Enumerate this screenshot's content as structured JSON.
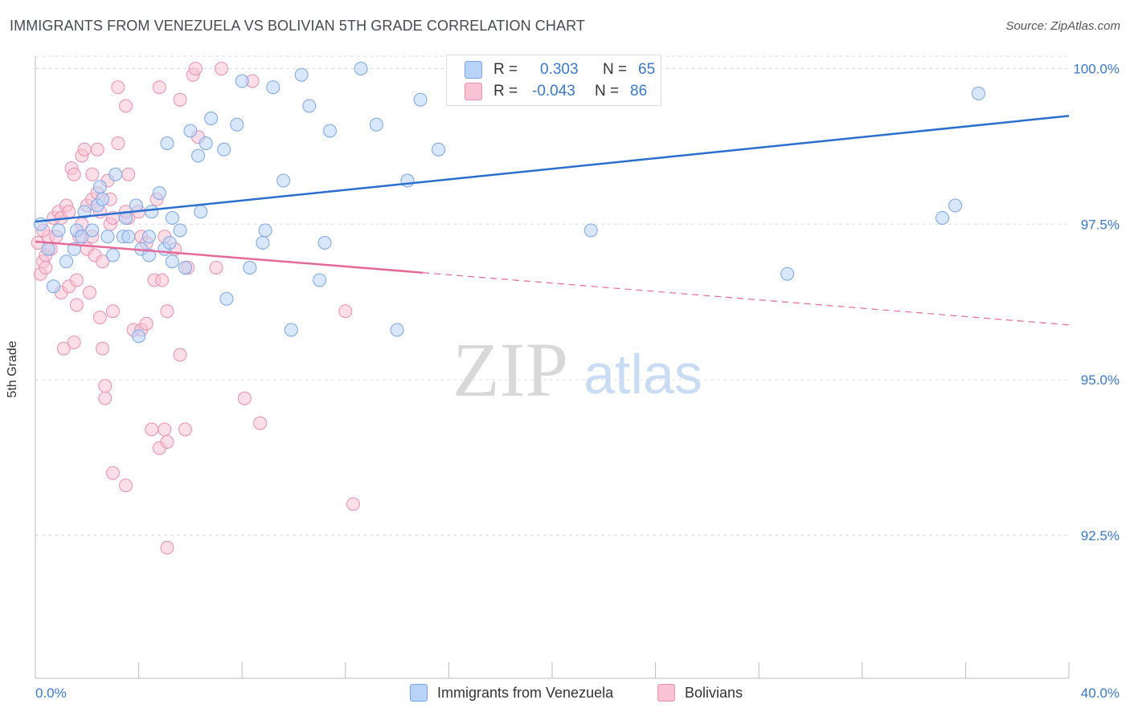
{
  "header": {
    "title": "IMMIGRANTS FROM VENEZUELA VS BOLIVIAN 5TH GRADE CORRELATION CHART",
    "source": "Source: ZipAtlas.com"
  },
  "watermark": {
    "zip": "ZIP",
    "atlas": "atlas"
  },
  "legend": {
    "rows": [
      {
        "r_label": "R =",
        "r_value": "0.303",
        "n_label": "N =",
        "n_value": "65",
        "color": "#b8d3f7"
      },
      {
        "r_label": "R =",
        "r_value": "-0.043",
        "n_label": "N =",
        "n_value": "86",
        "color": "#f9c3d4"
      }
    ]
  },
  "colors": {
    "blue_fill": "#b8d3f7",
    "blue_stroke": "#7aa6e6",
    "blue_line": "#2b6fce",
    "pink_fill": "#f9c3d4",
    "pink_stroke": "#eb8fb0",
    "pink_line": "#e56a99",
    "tick_label": "#3a78c9",
    "grid": "#dddddd"
  },
  "chart_data": {
    "type": "scatter",
    "title": "IMMIGRANTS FROM VENEZUELA VS BOLIVIAN 5TH GRADE CORRELATION CHART",
    "xlabel": "",
    "ylabel": "5th Grade",
    "xlim": [
      0,
      40
    ],
    "ylim": [
      90.2,
      100.2
    ],
    "x_tick_labels": [
      "0.0%",
      "40.0%"
    ],
    "y_ticks": [
      {
        "value": 92.5,
        "label": "92.5%"
      },
      {
        "value": 95.0,
        "label": "95.0%"
      },
      {
        "value": 97.5,
        "label": "97.5%"
      },
      {
        "value": 100.0,
        "label": "100.0%"
      }
    ],
    "grid": "horizontal dashed",
    "legend_position": "bottom",
    "series": [
      {
        "name": "Immigrants from Venezuela",
        "r": 0.303,
        "n": 65,
        "trend": {
          "x": [
            0,
            40
          ],
          "y": [
            97.54,
            99.24
          ],
          "style": "solid"
        },
        "points": [
          [
            0.2,
            97.5
          ],
          [
            0.5,
            97.1
          ],
          [
            0.7,
            96.5
          ],
          [
            0.9,
            97.4
          ],
          [
            1.2,
            96.9
          ],
          [
            1.5,
            97.1
          ],
          [
            1.6,
            97.4
          ],
          [
            1.8,
            97.3
          ],
          [
            1.9,
            97.7
          ],
          [
            2.2,
            97.4
          ],
          [
            2.5,
            98.1
          ],
          [
            2.4,
            97.8
          ],
          [
            2.6,
            97.9
          ],
          [
            2.8,
            97.3
          ],
          [
            3.0,
            97.0
          ],
          [
            3.1,
            98.3
          ],
          [
            3.5,
            97.6
          ],
          [
            3.4,
            97.3
          ],
          [
            3.6,
            97.3
          ],
          [
            3.9,
            97.8
          ],
          [
            4.0,
            95.7
          ],
          [
            4.1,
            97.1
          ],
          [
            4.4,
            97.3
          ],
          [
            4.5,
            97.7
          ],
          [
            4.4,
            97.0
          ],
          [
            4.8,
            98.0
          ],
          [
            5.0,
            97.1
          ],
          [
            5.2,
            97.2
          ],
          [
            5.3,
            97.6
          ],
          [
            5.1,
            98.8
          ],
          [
            5.3,
            96.9
          ],
          [
            5.6,
            97.4
          ],
          [
            5.8,
            96.8
          ],
          [
            6.0,
            99.0
          ],
          [
            6.3,
            98.6
          ],
          [
            6.4,
            97.7
          ],
          [
            6.6,
            98.8
          ],
          [
            6.8,
            99.2
          ],
          [
            7.3,
            98.7
          ],
          [
            7.4,
            96.3
          ],
          [
            7.8,
            99.1
          ],
          [
            8.0,
            99.8
          ],
          [
            8.3,
            96.8
          ],
          [
            8.8,
            97.2
          ],
          [
            8.9,
            97.4
          ],
          [
            9.2,
            99.7
          ],
          [
            9.6,
            98.2
          ],
          [
            9.9,
            95.8
          ],
          [
            10.3,
            99.9
          ],
          [
            10.6,
            99.4
          ],
          [
            11.0,
            96.6
          ],
          [
            11.2,
            97.2
          ],
          [
            11.4,
            99.0
          ],
          [
            12.6,
            100.0
          ],
          [
            13.2,
            99.1
          ],
          [
            14.0,
            95.8
          ],
          [
            14.4,
            98.2
          ],
          [
            14.9,
            99.5
          ],
          [
            15.6,
            98.7
          ],
          [
            17.5,
            100.0
          ],
          [
            21.5,
            97.4
          ],
          [
            29.1,
            96.7
          ],
          [
            35.1,
            97.6
          ],
          [
            35.6,
            97.8
          ],
          [
            36.5,
            99.6
          ]
        ]
      },
      {
        "name": "Bolivians",
        "r": -0.043,
        "n": 86,
        "trend": {
          "x": [
            0,
            15
          ],
          "y": [
            97.22,
            96.72
          ],
          "style": "solid",
          "extension": {
            "x": [
              15,
              40
            ],
            "y": [
              96.72,
              95.88
            ],
            "style": "dashed"
          }
        },
        "points": [
          [
            0.1,
            97.2
          ],
          [
            0.2,
            96.7
          ],
          [
            0.3,
            96.9
          ],
          [
            0.4,
            97.0
          ],
          [
            0.4,
            96.8
          ],
          [
            0.5,
            97.3
          ],
          [
            0.6,
            97.1
          ],
          [
            0.7,
            97.6
          ],
          [
            0.8,
            97.3
          ],
          [
            0.9,
            97.7
          ],
          [
            1.0,
            96.4
          ],
          [
            1.0,
            97.6
          ],
          [
            1.1,
            95.5
          ],
          [
            1.2,
            97.8
          ],
          [
            1.3,
            97.7
          ],
          [
            1.3,
            96.5
          ],
          [
            1.4,
            98.4
          ],
          [
            1.5,
            95.6
          ],
          [
            1.5,
            98.3
          ],
          [
            1.6,
            96.6
          ],
          [
            1.7,
            97.3
          ],
          [
            1.6,
            96.2
          ],
          [
            1.8,
            98.6
          ],
          [
            1.8,
            97.5
          ],
          [
            1.9,
            98.7
          ],
          [
            2.0,
            97.8
          ],
          [
            2.0,
            97.1
          ],
          [
            2.1,
            96.4
          ],
          [
            2.2,
            98.3
          ],
          [
            2.2,
            97.3
          ],
          [
            2.2,
            97.9
          ],
          [
            2.3,
            97.0
          ],
          [
            2.4,
            98.7
          ],
          [
            2.4,
            98.0
          ],
          [
            2.5,
            97.7
          ],
          [
            2.5,
            96.0
          ],
          [
            2.6,
            95.5
          ],
          [
            2.6,
            96.9
          ],
          [
            2.7,
            94.9
          ],
          [
            2.7,
            94.7
          ],
          [
            2.8,
            98.2
          ],
          [
            2.9,
            97.9
          ],
          [
            2.9,
            97.5
          ],
          [
            3.0,
            93.5
          ],
          [
            3.0,
            97.6
          ],
          [
            3.0,
            96.1
          ],
          [
            3.2,
            98.8
          ],
          [
            3.2,
            99.7
          ],
          [
            3.5,
            93.3
          ],
          [
            3.5,
            99.4
          ],
          [
            3.5,
            97.7
          ],
          [
            3.6,
            97.6
          ],
          [
            3.6,
            98.3
          ],
          [
            3.8,
            95.8
          ],
          [
            4.0,
            97.7
          ],
          [
            4.1,
            97.3
          ],
          [
            4.1,
            95.8
          ],
          [
            4.3,
            95.9
          ],
          [
            4.3,
            97.2
          ],
          [
            4.5,
            94.2
          ],
          [
            4.6,
            96.6
          ],
          [
            4.7,
            97.9
          ],
          [
            4.8,
            93.9
          ],
          [
            4.8,
            99.7
          ],
          [
            4.9,
            96.6
          ],
          [
            5.0,
            97.3
          ],
          [
            5.0,
            94.2
          ],
          [
            5.1,
            96.1
          ],
          [
            5.1,
            94.0
          ],
          [
            5.1,
            92.3
          ],
          [
            5.4,
            97.1
          ],
          [
            5.6,
            95.4
          ],
          [
            5.6,
            99.5
          ],
          [
            5.8,
            94.2
          ],
          [
            5.9,
            96.8
          ],
          [
            6.1,
            99.9
          ],
          [
            6.2,
            100.0
          ],
          [
            6.3,
            98.9
          ],
          [
            7.0,
            96.8
          ],
          [
            7.2,
            100.0
          ],
          [
            8.1,
            94.7
          ],
          [
            8.4,
            99.8
          ],
          [
            8.7,
            94.3
          ],
          [
            12.0,
            96.1
          ],
          [
            12.3,
            93.0
          ],
          [
            0.3,
            97.4
          ]
        ]
      }
    ]
  },
  "bottom_legend": {
    "items": [
      {
        "label": "Immigrants from Venezuela",
        "color": "#b8d3f7"
      },
      {
        "label": "Bolivians",
        "color": "#f9c3d4"
      }
    ]
  }
}
